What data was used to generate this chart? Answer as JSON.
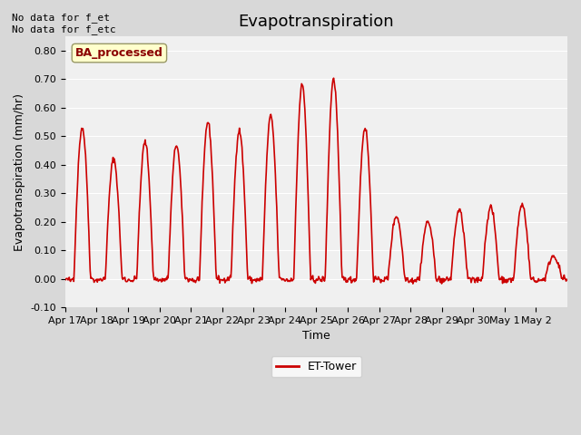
{
  "title": "Evapotranspiration",
  "ylabel": "Evapotranspiration (mm/hr)",
  "xlabel": "Time",
  "ylim": [
    -0.1,
    0.85
  ],
  "yticks": [
    -0.1,
    0.0,
    0.1,
    0.2,
    0.3,
    0.4,
    0.5,
    0.6,
    0.7,
    0.8
  ],
  "xtick_labels": [
    "Apr 17",
    "Apr 18",
    "Apr 19",
    "Apr 20",
    "Apr 21",
    "Apr 22",
    "Apr 23",
    "Apr 24",
    "Apr 25",
    "Apr 26",
    "Apr 27",
    "Apr 28",
    "Apr 29",
    "Apr 30",
    "May 1",
    "May 2"
  ],
  "annotation_text": "No data for f_et\nNo data for f_etc",
  "box_label": "BA_processed",
  "line_color": "#cc0000",
  "line_width": 1.2,
  "legend_label": "ET-Tower",
  "fig_bg_color": "#d8d8d8",
  "plot_bg_color": "#f0f0f0",
  "title_fontsize": 13,
  "axis_fontsize": 9,
  "tick_fontsize": 8,
  "day_amps": [
    0.53,
    0.42,
    0.48,
    0.47,
    0.55,
    0.52,
    0.57,
    0.68,
    0.7,
    0.53,
    0.22,
    0.2,
    0.24,
    0.25,
    0.26,
    0.08
  ]
}
